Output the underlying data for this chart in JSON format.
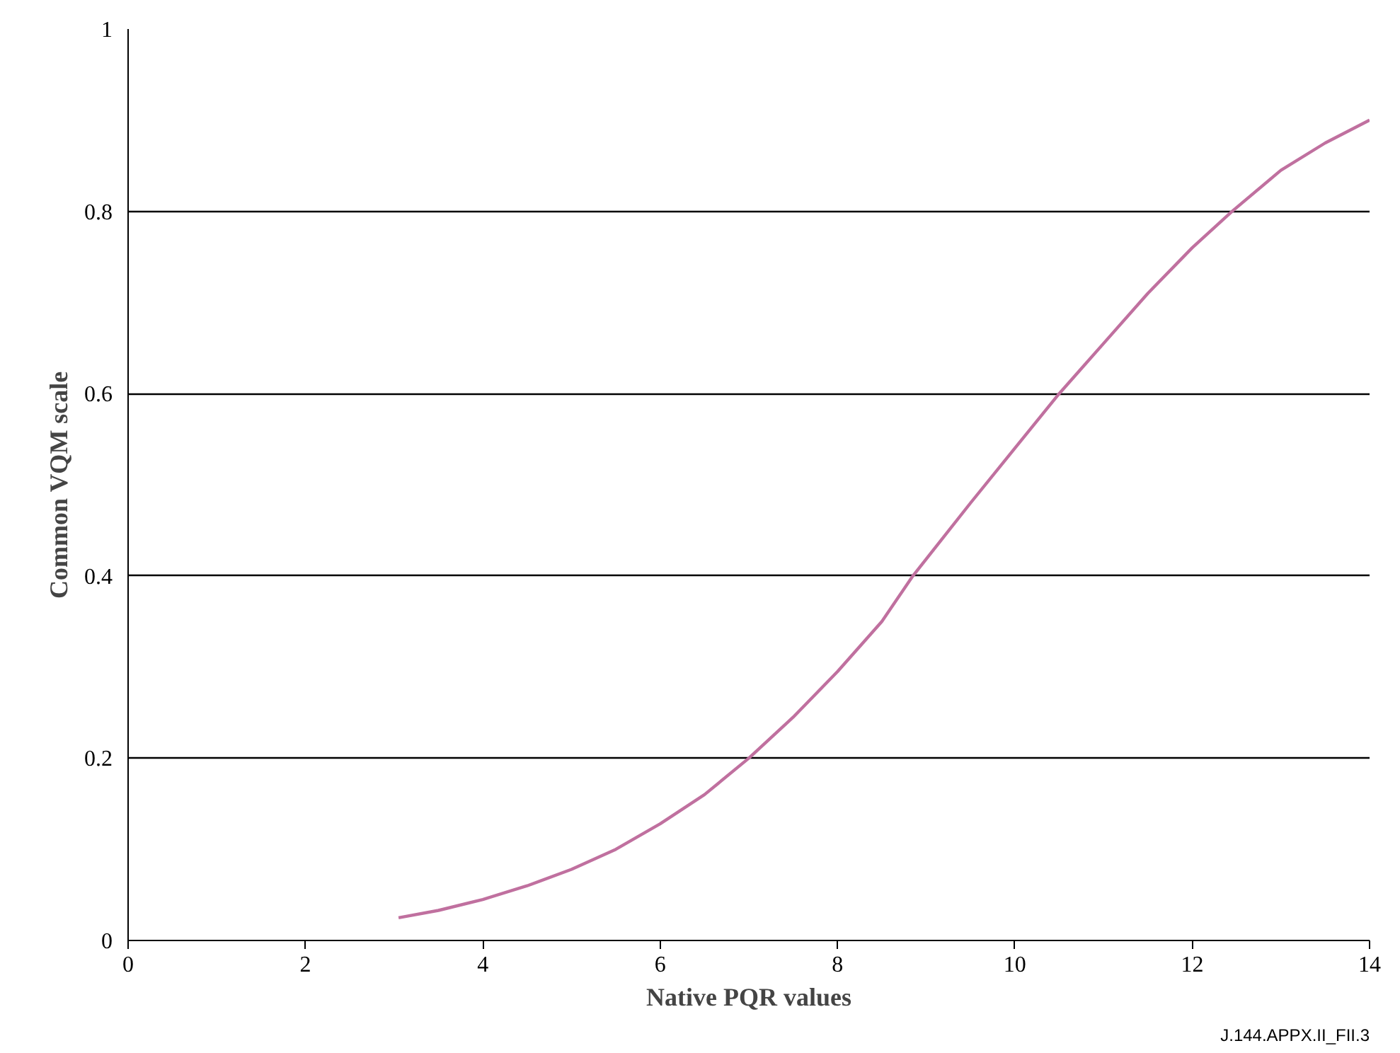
{
  "chart_data": {
    "type": "line",
    "xlabel": "Native PQR values",
    "ylabel": "Common VQM scale",
    "annotations": [
      "J.144.APPX.II_FII.3"
    ],
    "x": [
      3.05,
      3.5,
      4,
      4.5,
      5,
      5.5,
      6,
      6.5,
      7,
      7.5,
      8,
      8.5,
      8.85,
      9.5,
      10,
      10.5,
      11,
      11.5,
      12,
      12.45,
      13,
      13.5,
      14
    ],
    "series": [
      {
        "color": "#c0709f",
        "values": [
          0.025,
          0.033,
          0.045,
          0.06,
          0.078,
          0.1,
          0.128,
          0.16,
          0.2,
          0.245,
          0.295,
          0.35,
          0.4,
          0.48,
          0.54,
          0.6,
          0.655,
          0.71,
          0.76,
          0.8,
          0.845,
          0.875,
          0.9
        ]
      }
    ],
    "xlim": [
      0,
      14
    ],
    "ylim": [
      0,
      1
    ],
    "xticks": [
      0,
      2,
      4,
      6,
      8,
      10,
      12,
      14
    ],
    "yticks": [
      0,
      0.2,
      0.4,
      0.6,
      0.8,
      1
    ],
    "grid": "y",
    "marker": "none",
    "line_style": "solid"
  }
}
